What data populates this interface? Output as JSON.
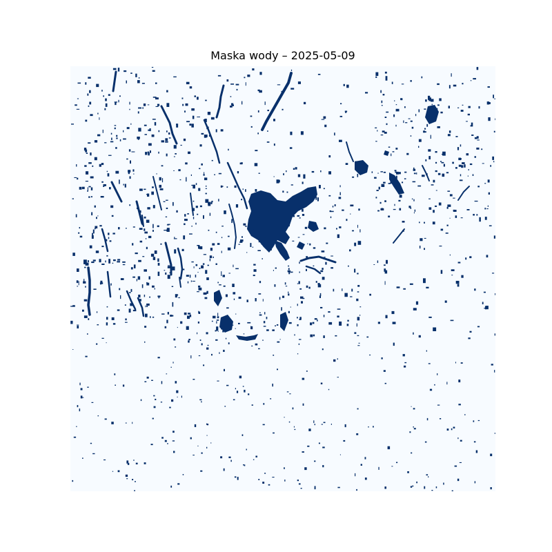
{
  "title": "Maska wody – 2025-05-09",
  "colors": {
    "background": "#ffffff",
    "land": "#f7fbff",
    "water": "#08306b",
    "colormap": "Blues"
  },
  "map": {
    "layer": "water-mask",
    "axes_visible": false,
    "values": [
      0,
      1
    ]
  }
}
